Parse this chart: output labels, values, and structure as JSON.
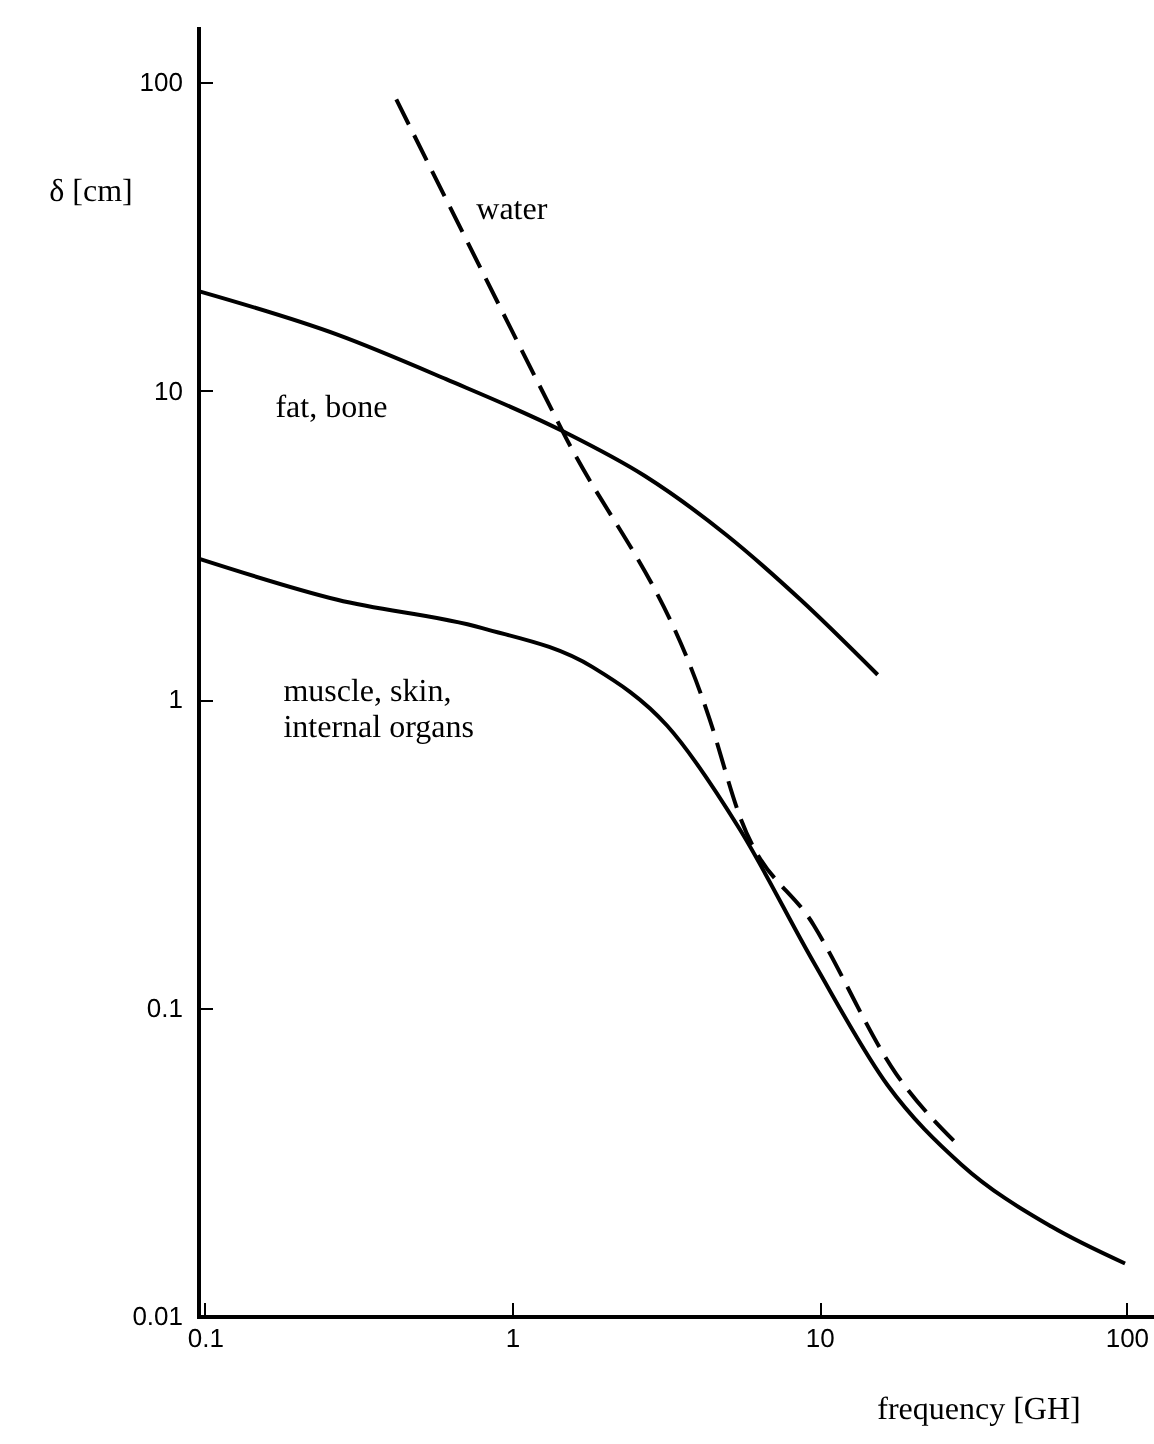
{
  "chart_data": {
    "type": "line",
    "xlabel": "frequency [GH]",
    "ylabel": "δ [cm]",
    "log": "xy",
    "xlim": [
      0.095,
      123
    ],
    "ylim": [
      0.01,
      150
    ],
    "xticks": [
      0.1,
      1,
      10,
      100
    ],
    "yticks": [
      0.01,
      0.1,
      1,
      10,
      100
    ],
    "series": [
      {
        "name": "fat, bone",
        "color": "#000000",
        "line_style": "solid",
        "x": [
          0.096,
          0.27,
          0.61,
          1.46,
          2.7,
          5.0,
          8.7,
          15.5
        ],
        "values": [
          21,
          15.2,
          10.9,
          7.4,
          5.3,
          3.4,
          2.1,
          1.2
        ]
      },
      {
        "name": "water",
        "color": "#000000",
        "line_style": "dashed",
        "x": [
          0.42,
          1.46,
          4.4,
          5.5,
          9.6,
          17.8,
          29
        ],
        "values": [
          88,
          7.4,
          0.86,
          0.42,
          0.185,
          0.061,
          0.035
        ]
      },
      {
        "name": "muscle, skin,\ninternal organs",
        "color": "#000000",
        "line_style": "solid",
        "x": [
          0.096,
          0.27,
          0.8,
          1.83,
          3.2,
          5.5,
          9.6,
          16.7,
          29,
          57,
          99
        ],
        "values": [
          2.85,
          2.1,
          1.7,
          1.27,
          0.82,
          0.38,
          0.14,
          0.056,
          0.031,
          0.0195,
          0.0148
        ]
      }
    ]
  }
}
